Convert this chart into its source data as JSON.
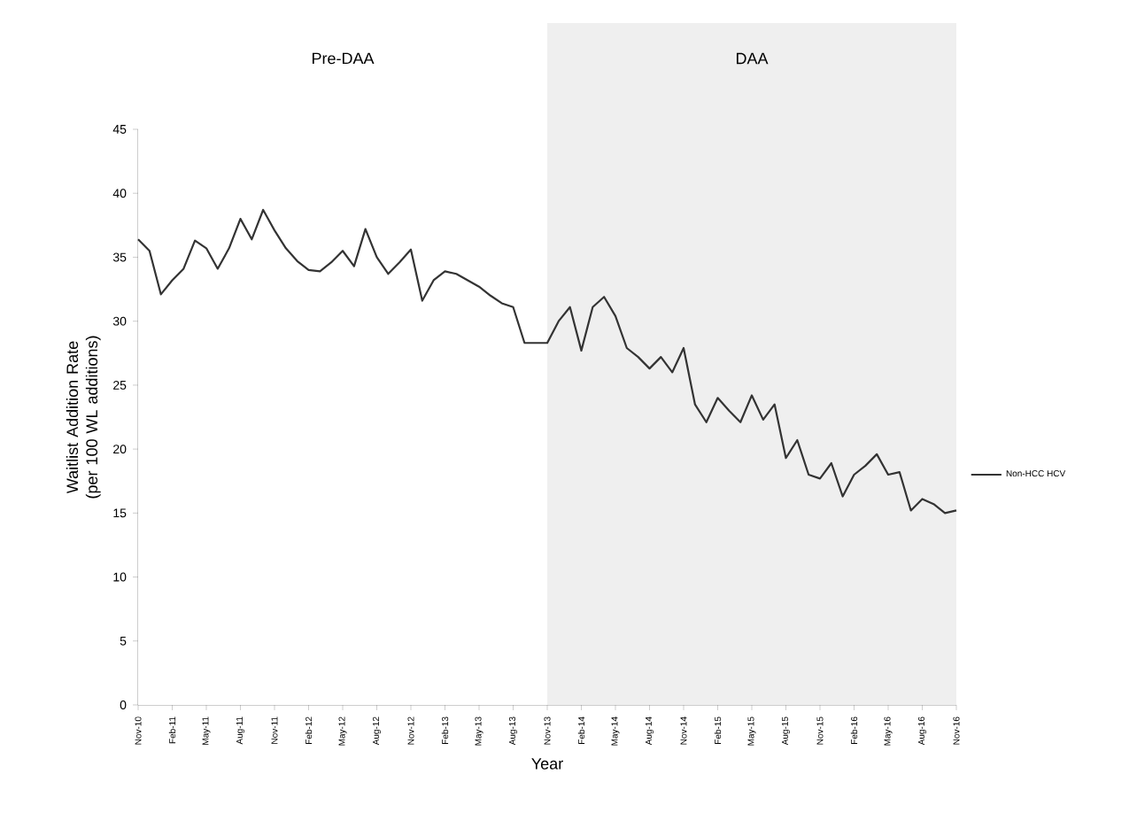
{
  "chart_data": {
    "type": "line",
    "xlabel": "Year",
    "ylabel": "Waitlist Addition Rate (per 100 WL additions)",
    "categories": [
      "Nov-10",
      null,
      null,
      "Feb-11",
      null,
      null,
      "May-11",
      null,
      null,
      "Aug-11",
      null,
      null,
      "Nov-11",
      null,
      null,
      "Feb-12",
      null,
      null,
      "May-12",
      null,
      null,
      "Aug-12",
      null,
      null,
      "Nov-12",
      null,
      null,
      "Feb-13",
      null,
      null,
      "May-13",
      null,
      null,
      "Aug-13",
      null,
      null,
      "Nov-13",
      null,
      null,
      "Feb-14",
      null,
      null,
      "May-14",
      null,
      null,
      "Aug-14",
      null,
      null,
      "Nov-14",
      null,
      null,
      "Feb-15",
      null,
      null,
      "May-15",
      null,
      null,
      "Aug-15",
      null,
      null,
      "Nov-15",
      null,
      null,
      "Feb-16",
      null,
      null,
      "May-16",
      null,
      null,
      "Aug-16",
      null,
      null,
      "Nov-16"
    ],
    "series": [
      {
        "name": "Non-HCC HCV",
        "color": "#333333",
        "values": [
          36.4,
          35.5,
          32.1,
          33.2,
          34.1,
          36.3,
          35.7,
          34.1,
          35.7,
          38.0,
          36.4,
          38.7,
          37.1,
          35.7,
          34.7,
          34.0,
          33.9,
          34.6,
          35.5,
          34.3,
          37.2,
          35.0,
          33.7,
          34.6,
          35.6,
          31.6,
          33.2,
          33.9,
          33.7,
          33.2,
          32.7,
          32.0,
          31.4,
          31.1,
          28.3,
          28.3,
          28.3,
          30.0,
          31.1,
          27.7,
          31.1,
          31.9,
          30.4,
          27.9,
          27.2,
          26.3,
          27.2,
          26.0,
          27.9,
          23.5,
          22.1,
          24.0,
          23.0,
          22.1,
          24.2,
          22.3,
          23.5,
          19.3,
          20.7,
          18.0,
          17.7,
          18.9,
          16.3,
          18.0,
          18.7,
          19.6,
          18.0,
          18.2,
          15.2,
          16.1,
          15.7,
          15.0,
          15.2
        ]
      }
    ],
    "ylim": [
      0,
      45
    ],
    "yticks": [
      0,
      5,
      10,
      15,
      20,
      25,
      30,
      35,
      40,
      45
    ],
    "bands": [
      {
        "axis": "x",
        "from": "Nov-10",
        "to": "Nov-13",
        "label": "Pre-DAA",
        "color": "#ffffff"
      },
      {
        "axis": "x",
        "from": "Nov-13",
        "to": "Nov-16",
        "label": "DAA",
        "color": "#efefef"
      }
    ],
    "legend": "right",
    "grid": false,
    "marker": "none",
    "line_style": "solid"
  }
}
